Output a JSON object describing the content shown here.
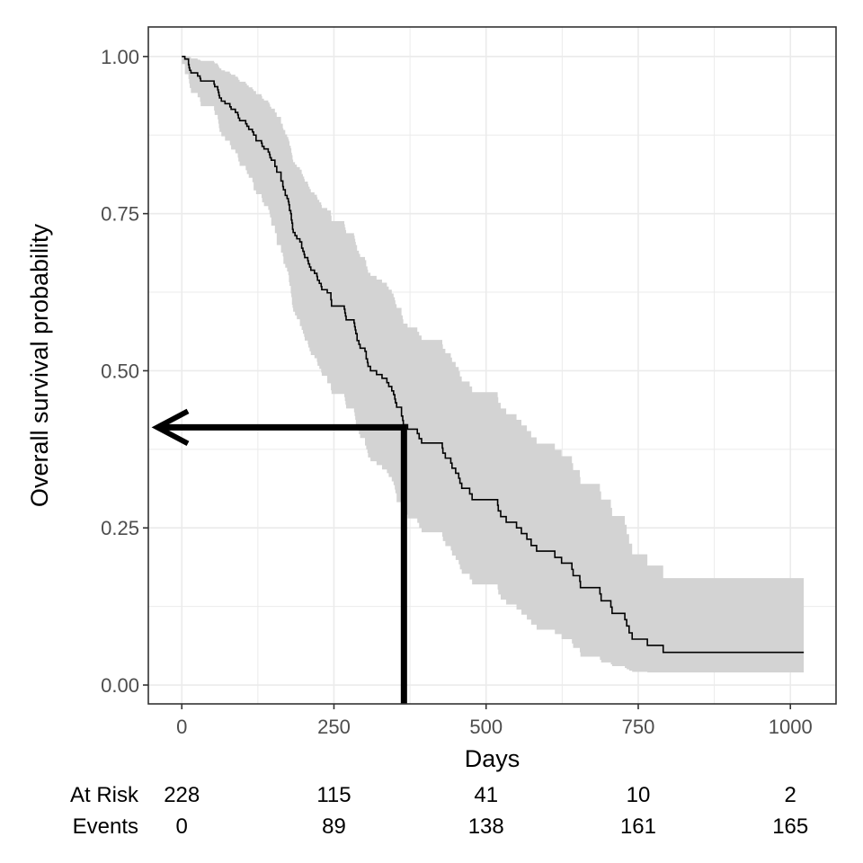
{
  "chart_data": {
    "type": "line",
    "title": "",
    "xlabel": "Days",
    "ylabel": "Overall survival probability",
    "xlim": [
      -55,
      1075
    ],
    "ylim": [
      -0.03,
      1.047
    ],
    "x_ticks": [
      0,
      250,
      500,
      750,
      1000
    ],
    "x_tick_labels": [
      "0",
      "250",
      "500",
      "750",
      "1000"
    ],
    "y_ticks": [
      0,
      0.25,
      0.5,
      0.75,
      1
    ],
    "y_tick_labels": [
      "0.00",
      "0.25",
      "0.50",
      "0.75",
      "1.00"
    ],
    "grid": true,
    "colors": {
      "line": "#000000",
      "ribbon": "#d3d3d3",
      "grid": "#ebebeb",
      "frame": "#333333",
      "annotation": "#000000"
    },
    "series": [
      {
        "x": [
          0,
          5,
          11,
          12,
          13,
          15,
          26,
          30,
          31,
          53,
          54,
          59,
          60,
          61,
          62,
          65,
          71,
          79,
          81,
          88,
          92,
          93,
          95,
          105,
          107,
          110,
          116,
          118,
          122,
          131,
          132,
          135,
          142,
          144,
          145,
          147,
          153,
          156,
          163,
          166,
          167,
          170,
          173,
          175,
          176,
          177,
          179,
          180,
          181,
          182,
          183,
          186,
          189,
          194,
          197,
          199,
          201,
          202,
          207,
          208,
          210,
          212,
          218,
          222,
          223,
          226,
          229,
          230,
          239,
          245,
          246,
          267,
          268,
          269,
          270,
          283,
          284,
          285,
          286,
          288,
          291,
          293,
          301,
          303,
          305,
          306,
          310,
          320,
          329,
          337,
          340,
          345,
          348,
          350,
          351,
          353,
          361,
          363,
          364,
          371,
          387,
          390,
          394,
          428,
          429,
          433,
          442,
          444,
          450,
          455,
          457,
          460,
          473,
          477,
          519,
          520,
          524,
          533,
          550,
          558,
          567,
          574,
          583,
          613,
          624,
          641,
          643,
          654,
          655,
          687,
          689,
          705,
          707,
          728,
          731,
          735,
          740,
          765,
          791,
          814,
          821,
          883,
          965,
          1022
        ],
        "y": [
          1.0,
          0.996,
          0.987,
          0.982,
          0.978,
          0.974,
          0.969,
          0.965,
          0.961,
          0.956,
          0.952,
          0.947,
          0.943,
          0.938,
          0.934,
          0.929,
          0.925,
          0.92,
          0.916,
          0.911,
          0.907,
          0.902,
          0.898,
          0.893,
          0.889,
          0.884,
          0.88,
          0.875,
          0.866,
          0.862,
          0.857,
          0.853,
          0.848,
          0.844,
          0.839,
          0.835,
          0.825,
          0.816,
          0.802,
          0.793,
          0.788,
          0.779,
          0.774,
          0.769,
          0.764,
          0.755,
          0.75,
          0.74,
          0.735,
          0.725,
          0.72,
          0.715,
          0.71,
          0.705,
          0.695,
          0.69,
          0.685,
          0.68,
          0.675,
          0.67,
          0.665,
          0.66,
          0.655,
          0.65,
          0.644,
          0.639,
          0.634,
          0.629,
          0.624,
          0.613,
          0.603,
          0.598,
          0.592,
          0.587,
          0.581,
          0.576,
          0.57,
          0.565,
          0.559,
          0.548,
          0.542,
          0.536,
          0.531,
          0.519,
          0.513,
          0.507,
          0.5,
          0.494,
          0.488,
          0.481,
          0.475,
          0.468,
          0.462,
          0.455,
          0.449,
          0.442,
          0.428,
          0.421,
          0.414,
          0.407,
          0.4,
          0.392,
          0.385,
          0.377,
          0.369,
          0.361,
          0.353,
          0.345,
          0.337,
          0.329,
          0.321,
          0.313,
          0.304,
          0.295,
          0.286,
          0.277,
          0.268,
          0.259,
          0.25,
          0.241,
          0.232,
          0.222,
          0.213,
          0.203,
          0.194,
          0.184,
          0.174,
          0.165,
          0.155,
          0.145,
          0.134,
          0.124,
          0.114,
          0.104,
          0.094,
          0.083,
          0.073,
          0.063,
          0.052,
          0.052,
          0.052,
          0.052,
          0.052,
          0.052
        ],
        "lower": [
          1.0,
          0.988,
          0.972,
          0.964,
          0.957,
          0.95,
          0.942,
          0.935,
          0.928,
          0.921,
          0.914,
          0.907,
          0.9,
          0.893,
          0.886,
          0.88,
          0.873,
          0.866,
          0.859,
          0.852,
          0.846,
          0.839,
          0.833,
          0.826,
          0.819,
          0.813,
          0.807,
          0.8,
          0.787,
          0.781,
          0.775,
          0.768,
          0.762,
          0.756,
          0.75,
          0.744,
          0.731,
          0.719,
          0.7,
          0.688,
          0.682,
          0.67,
          0.664,
          0.658,
          0.652,
          0.641,
          0.635,
          0.623,
          0.617,
          0.605,
          0.6,
          0.594,
          0.588,
          0.582,
          0.571,
          0.565,
          0.559,
          0.554,
          0.548,
          0.542,
          0.537,
          0.531,
          0.525,
          0.52,
          0.514,
          0.508,
          0.503,
          0.497,
          0.492,
          0.48,
          0.469,
          0.463,
          0.458,
          0.452,
          0.446,
          0.44,
          0.434,
          0.428,
          0.422,
          0.411,
          0.405,
          0.399,
          0.393,
          0.381,
          0.375,
          0.369,
          0.362,
          0.356,
          0.35,
          0.343,
          0.337,
          0.331,
          0.324,
          0.318,
          0.311,
          0.305,
          0.291,
          0.285,
          0.278,
          0.271,
          0.265,
          0.258,
          0.25,
          0.243,
          0.236,
          0.229,
          0.221,
          0.214,
          0.206,
          0.199,
          0.192,
          0.184,
          0.177,
          0.168,
          0.16,
          0.152,
          0.144,
          0.136,
          0.128,
          0.12,
          0.112,
          0.104,
          0.096,
          0.088,
          0.081,
          0.073,
          0.066,
          0.059,
          0.052,
          0.045,
          0.04,
          0.036,
          0.033,
          0.03,
          0.027,
          0.025,
          0.023,
          0.021,
          0.02,
          0.02,
          0.02,
          0.02,
          0.02,
          0.02
        ],
        "upper": [
          1.0,
          1.0,
          1.0,
          1.0,
          0.999,
          0.997,
          0.995,
          0.994,
          0.993,
          0.991,
          0.989,
          0.987,
          0.985,
          0.983,
          0.981,
          0.978,
          0.976,
          0.973,
          0.971,
          0.968,
          0.966,
          0.963,
          0.96,
          0.957,
          0.954,
          0.951,
          0.948,
          0.945,
          0.94,
          0.937,
          0.933,
          0.93,
          0.927,
          0.924,
          0.92,
          0.917,
          0.911,
          0.904,
          0.893,
          0.886,
          0.883,
          0.876,
          0.872,
          0.868,
          0.865,
          0.858,
          0.854,
          0.847,
          0.843,
          0.836,
          0.832,
          0.828,
          0.824,
          0.82,
          0.813,
          0.809,
          0.805,
          0.801,
          0.797,
          0.793,
          0.789,
          0.784,
          0.78,
          0.776,
          0.772,
          0.768,
          0.764,
          0.759,
          0.755,
          0.747,
          0.738,
          0.733,
          0.728,
          0.724,
          0.719,
          0.715,
          0.71,
          0.705,
          0.7,
          0.691,
          0.686,
          0.681,
          0.676,
          0.666,
          0.661,
          0.656,
          0.651,
          0.645,
          0.64,
          0.634,
          0.629,
          0.623,
          0.617,
          0.612,
          0.606,
          0.6,
          0.588,
          0.582,
          0.575,
          0.569,
          0.562,
          0.556,
          0.549,
          0.542,
          0.535,
          0.528,
          0.521,
          0.514,
          0.506,
          0.499,
          0.491,
          0.483,
          0.475,
          0.466,
          0.458,
          0.449,
          0.44,
          0.431,
          0.422,
          0.413,
          0.404,
          0.394,
          0.384,
          0.374,
          0.364,
          0.353,
          0.342,
          0.331,
          0.32,
          0.308,
          0.295,
          0.282,
          0.269,
          0.255,
          0.24,
          0.225,
          0.208,
          0.19,
          0.17,
          0.17,
          0.17,
          0.17,
          0.17,
          0.17
        ]
      }
    ],
    "annotation": {
      "x": 365,
      "y": 0.41,
      "description_shown": "vertical line at day 365 and arrow to y-axis at survival 0.41"
    },
    "risk_table": {
      "rows": [
        {
          "label": "At Risk",
          "values": [
            "228",
            "115",
            "41",
            "10",
            "2"
          ]
        },
        {
          "label": "Events",
          "values": [
            "0",
            "89",
            "138",
            "161",
            "165"
          ]
        }
      ]
    }
  }
}
